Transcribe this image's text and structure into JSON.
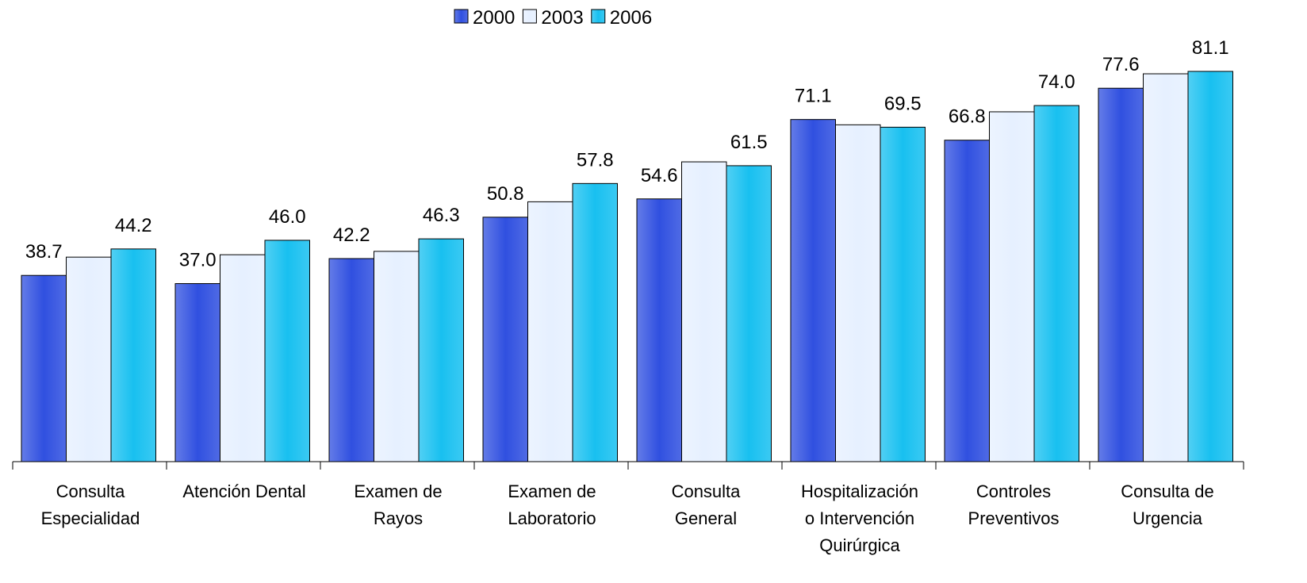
{
  "chart_data": {
    "type": "bar",
    "categories": [
      "Consulta\nEspecialidad",
      "Atención Dental",
      "Examen de\nRayos",
      "Examen de\nLaboratorio",
      "Consulta\nGeneral",
      "Hospitalización\no Intervención\nQuirúrgica",
      "Controles\nPreventivos",
      "Consulta de\nUrgencia"
    ],
    "series": [
      {
        "name": "2000",
        "color": "#3050e0",
        "values": [
          38.7,
          37.0,
          42.2,
          50.8,
          54.6,
          71.1,
          66.8,
          77.6
        ],
        "value_labels": [
          "38.7",
          "37.0",
          "42.2",
          "50.8",
          "54.6",
          "71.1",
          "66.8",
          "77.6"
        ]
      },
      {
        "name": "2003",
        "color": "#e6f0ff",
        "values": [
          42.5,
          43.0,
          43.7,
          54.0,
          62.3,
          70.0,
          72.7,
          80.6
        ]
      },
      {
        "name": "2006",
        "color": "#18c0f0",
        "values": [
          44.2,
          46.0,
          46.3,
          57.8,
          61.5,
          69.5,
          74.0,
          81.1
        ],
        "value_labels": [
          "44.2",
          "46.0",
          "46.3",
          "57.8",
          "61.5",
          "69.5",
          "74.0",
          "81.1"
        ]
      }
    ],
    "ylim": [
      0,
      90
    ],
    "legend": "top"
  }
}
